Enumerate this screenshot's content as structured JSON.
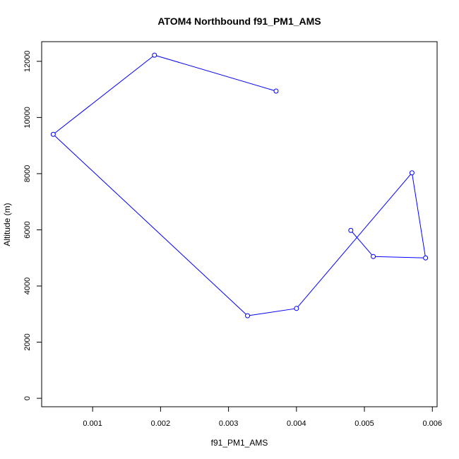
{
  "chart_data": {
    "type": "line",
    "title": "ATOM4 Northbound f91_PM1_AMS",
    "xlabel": "f91_PM1_AMS",
    "ylabel": "Altitude (m)",
    "xlim": [
      0.00025,
      0.00607
    ],
    "ylim": [
      -300,
      12700
    ],
    "x_ticks": [
      0.001,
      0.002,
      0.003,
      0.004,
      0.005,
      0.006
    ],
    "x_tick_labels": [
      "0.001",
      "0.002",
      "0.003",
      "0.004",
      "0.005",
      "0.006"
    ],
    "y_ticks": [
      0,
      2000,
      4000,
      6000,
      8000,
      10000,
      12000
    ],
    "y_tick_labels": [
      "0",
      "2000",
      "4000",
      "6000",
      "8000",
      "10000",
      "12000"
    ],
    "grid": false,
    "legend": "none",
    "line_color": "#0000ff",
    "marker": "open-circle",
    "series": [
      {
        "points": [
          {
            "x": 0.0048,
            "y": 5980
          },
          {
            "x": 0.00513,
            "y": 5050
          },
          {
            "x": 0.0059,
            "y": 5000
          },
          {
            "x": 0.0057,
            "y": 8030
          },
          {
            "x": 0.004,
            "y": 3200
          },
          {
            "x": 0.00328,
            "y": 2940
          },
          {
            "x": 0.00042,
            "y": 9400
          },
          {
            "x": 0.00191,
            "y": 12220
          },
          {
            "x": 0.0037,
            "y": 10940
          }
        ]
      }
    ]
  }
}
